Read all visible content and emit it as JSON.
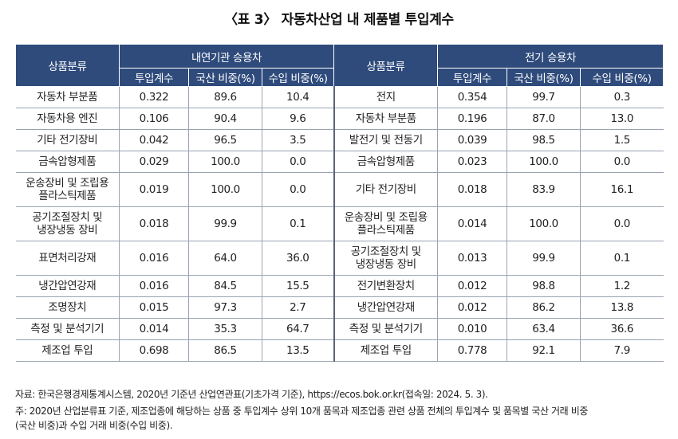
{
  "title": "〈표 3〉 자동차산업 내 제품별 투입계수",
  "table": {
    "left_group": "내연기관 승용차",
    "right_group": "전기 승용차",
    "category_header": "상품분류",
    "columns": [
      "투입계수",
      "국산 비중(%)",
      "수입 비중(%)"
    ],
    "rows": [
      {
        "left": [
          "자동차 부분품",
          "0.322",
          "89.6",
          "10.4"
        ],
        "right": [
          "전지",
          "0.354",
          "99.7",
          "0.3"
        ]
      },
      {
        "left": [
          "자동차용 엔진",
          "0.106",
          "90.4",
          "9.6"
        ],
        "right": [
          "자동차 부분품",
          "0.196",
          "87.0",
          "13.0"
        ]
      },
      {
        "left": [
          "기타 전기장비",
          "0.042",
          "96.5",
          "3.5"
        ],
        "right": [
          "발전기 및 전동기",
          "0.039",
          "98.5",
          "1.5"
        ]
      },
      {
        "left": [
          "금속압형제품",
          "0.029",
          "100.0",
          "0.0"
        ],
        "right": [
          "금속압형제품",
          "0.023",
          "100.0",
          "0.0"
        ]
      },
      {
        "left": [
          "운송장비 및 조립용 플라스틱제품",
          "0.019",
          "100.0",
          "0.0"
        ],
        "right": [
          "기타 전기장비",
          "0.018",
          "83.9",
          "16.1"
        ]
      },
      {
        "left": [
          "공기조절장치 및 냉장냉동 장비",
          "0.018",
          "99.9",
          "0.1"
        ],
        "right": [
          "운송장비 및 조립용 플라스틱제품",
          "0.014",
          "100.0",
          "0.0"
        ]
      },
      {
        "left": [
          "표면처리강재",
          "0.016",
          "64.0",
          "36.0"
        ],
        "right": [
          "공기조절장치 및 냉장냉동 장비",
          "0.013",
          "99.9",
          "0.1"
        ]
      },
      {
        "left": [
          "냉간압연강재",
          "0.016",
          "84.5",
          "15.5"
        ],
        "right": [
          "전기변환장치",
          "0.012",
          "98.8",
          "1.2"
        ]
      },
      {
        "left": [
          "조명장치",
          "0.015",
          "97.3",
          "2.7"
        ],
        "right": [
          "냉간압연강재",
          "0.012",
          "86.2",
          "13.8"
        ]
      },
      {
        "left": [
          "측정 및 분석기기",
          "0.014",
          "35.3",
          "64.7"
        ],
        "right": [
          "측정 및 분석기기",
          "0.010",
          "63.4",
          "36.6"
        ]
      },
      {
        "left": [
          "제조업 투입",
          "0.698",
          "86.5",
          "13.5"
        ],
        "right": [
          "제조업 투입",
          "0.778",
          "92.1",
          "7.9"
        ]
      }
    ]
  },
  "source": "자료: 한국은행경제통계시스템, 2020년 기준년 산업연관표(기초가격 기준), https://ecos.bok.or.kr(접속일: 2024. 5. 3).",
  "note_line1": "주: 2020년 산업분류표 기준, 제조업종에 해당하는 상품 중 투입계수 상위 10개 품목과 제조업종 관련 상품 전체의 투입계수 및 품목별 국산 거래 비중",
  "note_line2": "(국산 비중)과 수입 거래 비중(수입 비중).",
  "colors": {
    "header_bg": "#2f4b7c",
    "header_text": "#ffffff",
    "rule": "#9aa3b2"
  }
}
